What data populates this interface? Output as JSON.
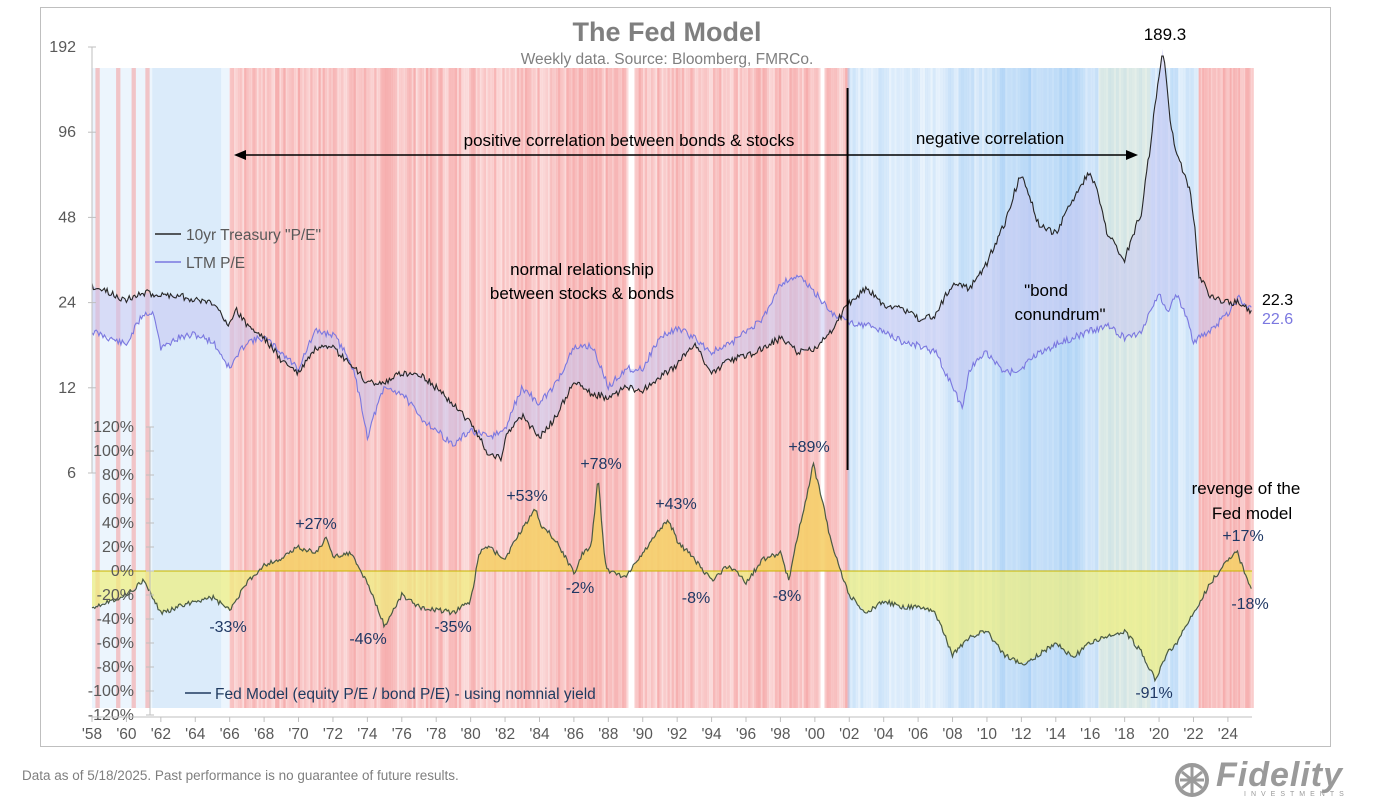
{
  "chart_data": {
    "type": "line",
    "title": "The Fed Model",
    "subtitle": "Weekly data.  Source: Bloomberg, FMRCo.",
    "x_tick_labels": [
      "'58",
      "'60",
      "'62",
      "'64",
      "'66",
      "'68",
      "'70",
      "'72",
      "'74",
      "'76",
      "'78",
      "'80",
      "'82",
      "'84",
      "'86",
      "'88",
      "'90",
      "'92",
      "'94",
      "'96",
      "'98",
      "'00",
      "'02",
      "'04",
      "'06",
      "'08",
      "'10",
      "'12",
      "'14",
      "'16",
      "'18",
      "'20",
      "'22",
      "'24"
    ],
    "x_range": [
      1958,
      2025.4
    ],
    "upper_panel": {
      "scale": "log2",
      "y_ticks": [
        6,
        12,
        24,
        48,
        96,
        192
      ],
      "ylim": [
        6,
        192
      ],
      "series": [
        {
          "name": "10yr Treasury \"P/E\"",
          "color": "#262626",
          "last_value_label": "22.3",
          "points": [
            [
              1958,
              27.5
            ],
            [
              1959,
              26
            ],
            [
              1960,
              24.5
            ],
            [
              1961,
              26
            ],
            [
              1962,
              25.5
            ],
            [
              1963,
              25.5
            ],
            [
              1964,
              24.5
            ],
            [
              1965,
              24
            ],
            [
              1966,
              20
            ],
            [
              1966.4,
              22.5
            ],
            [
              1967,
              20
            ],
            [
              1968,
              18
            ],
            [
              1969,
              15
            ],
            [
              1970,
              13.5
            ],
            [
              1971,
              16.5
            ],
            [
              1972,
              16.5
            ],
            [
              1973,
              14.5
            ],
            [
              1974,
              12.5
            ],
            [
              1975,
              12.5
            ],
            [
              1976,
              13.5
            ],
            [
              1977,
              13.5
            ],
            [
              1978,
              12
            ],
            [
              1979,
              10.5
            ],
            [
              1980,
              9
            ],
            [
              1981,
              7
            ],
            [
              1981.8,
              6.8
            ],
            [
              1982,
              8
            ],
            [
              1983,
              9.5
            ],
            [
              1984,
              8
            ],
            [
              1985,
              9.5
            ],
            [
              1986,
              12.5
            ],
            [
              1987,
              11.5
            ],
            [
              1988,
              11
            ],
            [
              1989,
              12
            ],
            [
              1990,
              11.8
            ],
            [
              1991,
              13
            ],
            [
              1992,
              14.5
            ],
            [
              1993,
              17
            ],
            [
              1994,
              13.5
            ],
            [
              1995,
              15
            ],
            [
              1996,
              15.5
            ],
            [
              1997,
              16.5
            ],
            [
              1998,
              18
            ],
            [
              1999,
              16
            ],
            [
              2000,
              16.5
            ],
            [
              2001,
              19
            ],
            [
              2002,
              24
            ],
            [
              2003,
              27
            ],
            [
              2004,
              23.5
            ],
            [
              2005,
              23
            ],
            [
              2006,
              21
            ],
            [
              2007,
              21.5
            ],
            [
              2008,
              28
            ],
            [
              2009,
              27
            ],
            [
              2010,
              33
            ],
            [
              2011,
              45
            ],
            [
              2012,
              68
            ],
            [
              2013,
              45
            ],
            [
              2014,
              42
            ],
            [
              2015,
              55
            ],
            [
              2016,
              70
            ],
            [
              2017,
              42
            ],
            [
              2018,
              34
            ],
            [
              2019,
              50
            ],
            [
              2019.5,
              85
            ],
            [
              2020,
              150
            ],
            [
              2020.2,
              189.3
            ],
            [
              2020.6,
              110
            ],
            [
              2021,
              80
            ],
            [
              2021.8,
              60
            ],
            [
              2022.3,
              30
            ],
            [
              2023,
              25
            ],
            [
              2024,
              24
            ],
            [
              2024.6,
              24
            ],
            [
              2025.4,
              22.3
            ]
          ]
        },
        {
          "name": "LTM P/E",
          "color": "#7b78e0",
          "last_value_label": "22.6",
          "points": [
            [
              1958,
              19
            ],
            [
              1959,
              18
            ],
            [
              1960,
              17
            ],
            [
              1961,
              22
            ],
            [
              1961.6,
              22
            ],
            [
              1962,
              16.5
            ],
            [
              1963,
              18
            ],
            [
              1964,
              18.5
            ],
            [
              1965,
              17.5
            ],
            [
              1966,
              14
            ],
            [
              1967,
              17.5
            ],
            [
              1968,
              18
            ],
            [
              1969,
              16
            ],
            [
              1970,
              14
            ],
            [
              1971,
              19
            ],
            [
              1972,
              18.5
            ],
            [
              1973,
              15
            ],
            [
              1974,
              8
            ],
            [
              1975,
              12
            ],
            [
              1976,
              11.5
            ],
            [
              1977,
              9.5
            ],
            [
              1978,
              8.5
            ],
            [
              1979,
              7.5
            ],
            [
              1980,
              8.5
            ],
            [
              1981,
              8
            ],
            [
              1982,
              8.5
            ],
            [
              1983,
              12
            ],
            [
              1984,
              10.5
            ],
            [
              1985,
              12.5
            ],
            [
              1986,
              16.5
            ],
            [
              1987,
              17
            ],
            [
              1987.8,
              13
            ],
            [
              1988,
              12
            ],
            [
              1989,
              14
            ],
            [
              1990,
              14
            ],
            [
              1991,
              18
            ],
            [
              1992,
              19.5
            ],
            [
              1993,
              18
            ],
            [
              1994,
              16
            ],
            [
              1995,
              17
            ],
            [
              1996,
              19
            ],
            [
              1997,
              21
            ],
            [
              1998,
              28
            ],
            [
              1999,
              30
            ],
            [
              2000,
              26
            ],
            [
              2001,
              22
            ],
            [
              2002,
              20.5
            ],
            [
              2003,
              20
            ],
            [
              2004,
              19
            ],
            [
              2005,
              17.5
            ],
            [
              2006,
              17
            ],
            [
              2007,
              16
            ],
            [
              2008,
              12
            ],
            [
              2008.6,
              10
            ],
            [
              2009,
              14
            ],
            [
              2010,
              16
            ],
            [
              2011,
              13.5
            ],
            [
              2012,
              14
            ],
            [
              2013,
              16
            ],
            [
              2014,
              17
            ],
            [
              2015,
              18
            ],
            [
              2016,
              19
            ],
            [
              2017,
              20
            ],
            [
              2018,
              18
            ],
            [
              2019,
              19
            ],
            [
              2020,
              26
            ],
            [
              2020.5,
              22
            ],
            [
              2021,
              26
            ],
            [
              2022,
              17.5
            ],
            [
              2023,
              19
            ],
            [
              2024,
              22
            ],
            [
              2024.6,
              25
            ],
            [
              2025.4,
              22.6
            ]
          ]
        }
      ],
      "annotations": [
        "positive correlation between bonds & stocks",
        "negative correlation",
        "normal relationship",
        "between stocks & bonds",
        "\"bond",
        "conundrum\"",
        "189.3"
      ]
    },
    "lower_panel": {
      "series_name": "Fed Model (equity P/E / bond P/E) - using nomnial yield",
      "color": "#4a5a44",
      "positive_fill": "#f5cf6a",
      "negative_fill": "#f0f07a",
      "y_ticks": [
        "120%",
        "100%",
        "80%",
        "60%",
        "40%",
        "20%",
        "0%",
        "-20%",
        "-40%",
        "-60%",
        "-80%",
        "-100%",
        "-120%"
      ],
      "ylim": [
        -120,
        120
      ],
      "points": [
        [
          1958,
          -30
        ],
        [
          1959,
          -25
        ],
        [
          1960,
          -20
        ],
        [
          1961,
          -8
        ],
        [
          1962,
          -35
        ],
        [
          1963,
          -30
        ],
        [
          1964,
          -25
        ],
        [
          1965,
          -22
        ],
        [
          1966,
          -33
        ],
        [
          1967,
          -10
        ],
        [
          1968,
          5
        ],
        [
          1969,
          10
        ],
        [
          1970,
          20
        ],
        [
          1971,
          15
        ],
        [
          1971.6,
          27
        ],
        [
          1972,
          12
        ],
        [
          1973,
          15
        ],
        [
          1974,
          -10
        ],
        [
          1975,
          -46
        ],
        [
          1976,
          -20
        ],
        [
          1977,
          -30
        ],
        [
          1978,
          -32
        ],
        [
          1979,
          -35
        ],
        [
          1980,
          -25
        ],
        [
          1980.5,
          15
        ],
        [
          1981,
          20
        ],
        [
          1982,
          10
        ],
        [
          1983,
          35
        ],
        [
          1983.8,
          53
        ],
        [
          1984,
          40
        ],
        [
          1985,
          25
        ],
        [
          1986,
          -2
        ],
        [
          1986.5,
          15
        ],
        [
          1987,
          20
        ],
        [
          1987.4,
          78
        ],
        [
          1987.8,
          10
        ],
        [
          1988,
          0
        ],
        [
          1989,
          -5
        ],
        [
          1990,
          15
        ],
        [
          1991,
          35
        ],
        [
          1991.5,
          43
        ],
        [
          1992,
          25
        ],
        [
          1993,
          10
        ],
        [
          1994,
          -8
        ],
        [
          1995,
          5
        ],
        [
          1996,
          -10
        ],
        [
          1997,
          10
        ],
        [
          1998,
          15
        ],
        [
          1998.5,
          -8
        ],
        [
          1999,
          30
        ],
        [
          1999.5,
          60
        ],
        [
          1999.9,
          89
        ],
        [
          2000.5,
          55
        ],
        [
          2001,
          20
        ],
        [
          2001.5,
          0
        ],
        [
          2002,
          -20
        ],
        [
          2003,
          -35
        ],
        [
          2004,
          -25
        ],
        [
          2005,
          -30
        ],
        [
          2006,
          -30
        ],
        [
          2007,
          -35
        ],
        [
          2008,
          -70
        ],
        [
          2009,
          -55
        ],
        [
          2010,
          -50
        ],
        [
          2011,
          -70
        ],
        [
          2012,
          -78
        ],
        [
          2013,
          -70
        ],
        [
          2014,
          -60
        ],
        [
          2015,
          -72
        ],
        [
          2016,
          -60
        ],
        [
          2017,
          -55
        ],
        [
          2018,
          -50
        ],
        [
          2019,
          -68
        ],
        [
          2019.8,
          -91
        ],
        [
          2020.4,
          -70
        ],
        [
          2021,
          -60
        ],
        [
          2022,
          -35
        ],
        [
          2023,
          -10
        ],
        [
          2024,
          10
        ],
        [
          2024.5,
          17
        ],
        [
          2025.4,
          -18
        ]
      ],
      "annotations": [
        "+27%",
        "-33%",
        "-46%",
        "-35%",
        "+53%",
        "+78%",
        "-2%",
        "+43%",
        "-8%",
        "-8%",
        "+89%",
        "-91%",
        "+17%",
        "-18%",
        "revenge of the",
        "Fed model"
      ]
    },
    "background_band_colors": {
      "red": "#f5a3a3",
      "blue": "#a9d0f5"
    },
    "grid": false,
    "legend_placement": "inside-left"
  },
  "footnote": "Data as of 5/18/2025. Past performance is no guarantee of future results.",
  "logo": {
    "word": "Fidelity",
    "sub": "INVESTMENTS"
  }
}
